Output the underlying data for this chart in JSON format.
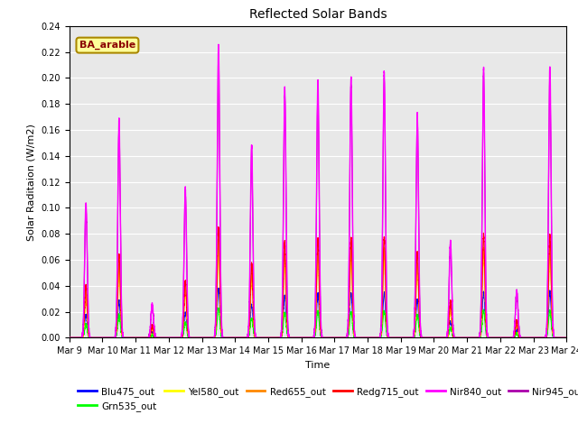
{
  "title": "Reflected Solar Bands",
  "xlabel": "Time",
  "ylabel": "Solar Raditaion (W/m2)",
  "annotation": "BA_arable",
  "annotation_color": "#8B0000",
  "annotation_bg": "#FFFF99",
  "ylim": [
    0,
    0.24
  ],
  "yticks": [
    0.0,
    0.02,
    0.04,
    0.06,
    0.08,
    0.1,
    0.12,
    0.14,
    0.16,
    0.18,
    0.2,
    0.22,
    0.24
  ],
  "series": {
    "Blu475_out": {
      "color": "#0000FF",
      "lw": 0.8
    },
    "Grn535_out": {
      "color": "#00FF00",
      "lw": 0.8
    },
    "Yel580_out": {
      "color": "#FFFF00",
      "lw": 0.8
    },
    "Red655_out": {
      "color": "#FF8800",
      "lw": 0.8
    },
    "Redg715_out": {
      "color": "#FF0000",
      "lw": 0.8
    },
    "Nir840_out": {
      "color": "#FF00FF",
      "lw": 1.0
    },
    "Nir945_out": {
      "color": "#AA00AA",
      "lw": 0.8
    }
  },
  "xtick_labels": [
    "Mar 9",
    "Mar 10",
    "Mar 11",
    "Mar 12",
    "Mar 13",
    "Mar 14",
    "Mar 15",
    "Mar 16",
    "Mar 17",
    "Mar 18",
    "Mar 19",
    "Mar 20",
    "Mar 21",
    "Mar 22",
    "Mar 23",
    "Mar 24"
  ],
  "bg_color": "#E8E8E8",
  "grid_color": "white",
  "fig_bg": "#FFFFFF",
  "day_peaks": [
    0.104,
    0.167,
    0.025,
    0.115,
    0.225,
    0.148,
    0.192,
    0.198,
    0.2,
    0.205,
    0.172,
    0.074,
    0.208,
    0.036,
    0.208
  ],
  "n_days": 15
}
